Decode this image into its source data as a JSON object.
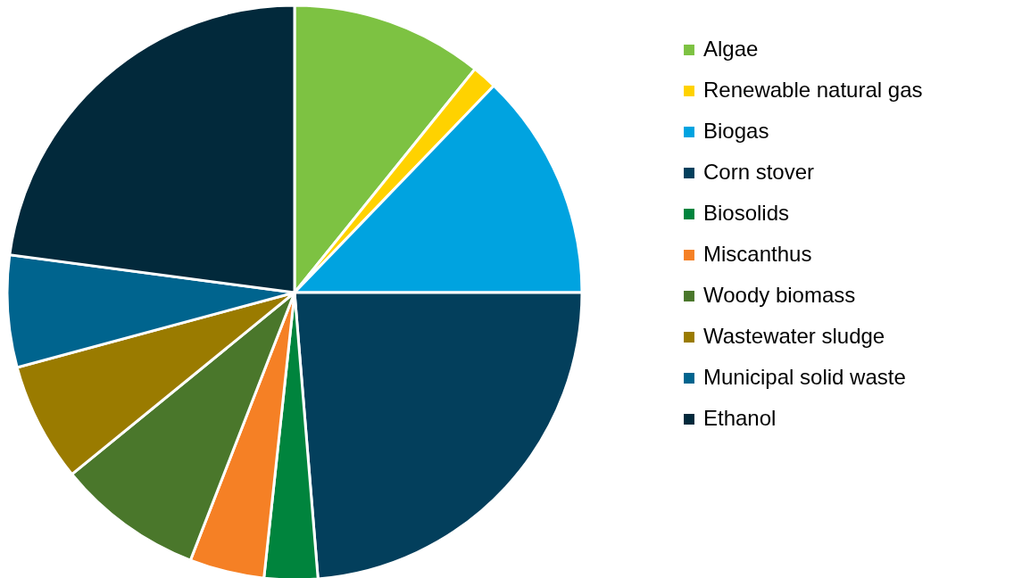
{
  "chart_data": {
    "type": "pie",
    "legend": "right",
    "categories": [
      "Algae",
      "Renewable natural gas",
      "Biogas",
      "Corn stover",
      "Biosolids",
      "Miscanthus",
      "Woody biomass",
      "Wastewater sludge",
      "Municipal solid waste",
      "Ethanol"
    ],
    "values": [
      10.8,
      1.4,
      12.8,
      23.7,
      3.0,
      4.2,
      8.2,
      6.7,
      6.3,
      22.9
    ],
    "colors": [
      "#7dc242",
      "#ffd200",
      "#00a3e0",
      "#033f5c",
      "#00843d",
      "#f58025",
      "#4a772b",
      "#9a7b00",
      "#00648e",
      "#02293b"
    ]
  }
}
